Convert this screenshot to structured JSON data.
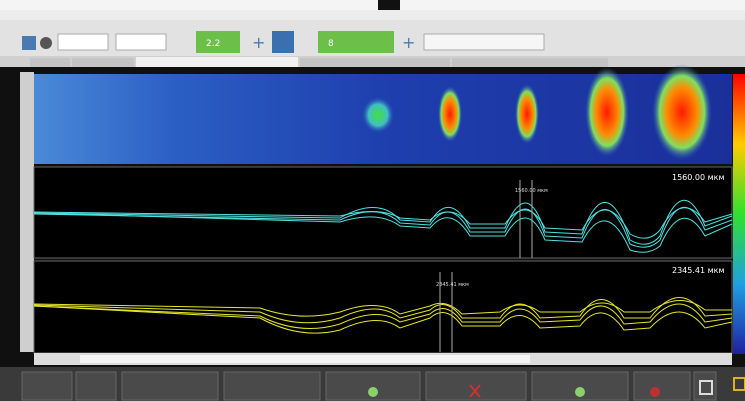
{
  "readouts": {
    "upper": "1560.00 мкм",
    "lower": "2345.41 мкм",
    "cursor_upper": "1560.00 мкм",
    "cursor_lower": "2345.41 мкм"
  },
  "toolbar": {
    "field_1": "2.2",
    "field_2": "8"
  }
}
